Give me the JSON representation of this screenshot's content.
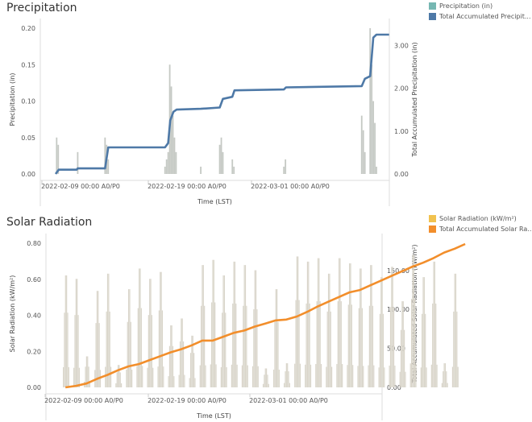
{
  "panels": [
    {
      "title": "Precipitation",
      "legend": [
        {
          "label": "Precipitation (in)",
          "color": "#76b7b2"
        },
        {
          "label": "Total Accumulated Precipit...",
          "color": "#4e79a7"
        }
      ]
    },
    {
      "title": "Solar Radiation",
      "legend": [
        {
          "label": "Solar Radiation (kW/m²)",
          "color": "#f1c24f"
        },
        {
          "label": "Total Accumulated Solar Ra...",
          "color": "#f28e2b"
        }
      ]
    }
  ],
  "chart_data": [
    {
      "type": "bar+line",
      "xlabel": "Time (LST)",
      "ylabel": "Precipitation (in)",
      "y2label": "Total Accumulated Precipitation (in)",
      "x_ticks": [
        "2022-02-09 00:00 A0/P0",
        "2022-02-19 00:00 A0/P0",
        "2022-03-01 00:00 A0/P0"
      ],
      "y_ticks": [
        "0.00",
        "0.05",
        "0.10",
        "0.15",
        "0.20"
      ],
      "y2_ticks": [
        "0.00",
        "1.00",
        "2.00",
        "3.00"
      ],
      "ylim": [
        0,
        0.2
      ],
      "y2lim": [
        0,
        3.4
      ],
      "grid": false,
      "bar_color": "#c5c9c4",
      "line_color": "#4e79a7",
      "bars": [
        {
          "day": 0.1,
          "v": 0.05
        },
        {
          "day": 0.25,
          "v": 0.04
        },
        {
          "day": 2.1,
          "v": 0.03
        },
        {
          "day": 4.7,
          "v": 0.05
        },
        {
          "day": 4.85,
          "v": 0.04
        },
        {
          "day": 5.0,
          "v": 0.02
        },
        {
          "day": 10.4,
          "v": 0.01
        },
        {
          "day": 10.55,
          "v": 0.02
        },
        {
          "day": 10.7,
          "v": 0.03
        },
        {
          "day": 10.85,
          "v": 0.15
        },
        {
          "day": 11.0,
          "v": 0.12
        },
        {
          "day": 11.15,
          "v": 0.08
        },
        {
          "day": 11.3,
          "v": 0.05
        },
        {
          "day": 11.45,
          "v": 0.03
        },
        {
          "day": 13.8,
          "v": 0.01
        },
        {
          "day": 15.6,
          "v": 0.04
        },
        {
          "day": 15.75,
          "v": 0.05
        },
        {
          "day": 15.9,
          "v": 0.03
        },
        {
          "day": 16.8,
          "v": 0.02
        },
        {
          "day": 16.95,
          "v": 0.01
        },
        {
          "day": 21.7,
          "v": 0.01
        },
        {
          "day": 21.85,
          "v": 0.02
        },
        {
          "day": 29.1,
          "v": 0.08
        },
        {
          "day": 29.25,
          "v": 0.06
        },
        {
          "day": 29.4,
          "v": 0.03
        },
        {
          "day": 29.9,
          "v": 0.2
        },
        {
          "day": 30.05,
          "v": 0.15
        },
        {
          "day": 30.2,
          "v": 0.1
        },
        {
          "day": 30.35,
          "v": 0.07
        },
        {
          "day": 30.5,
          "v": 0.01
        }
      ],
      "accumulated": [
        {
          "day": 0.0,
          "v": 0.0
        },
        {
          "day": 0.3,
          "v": 0.1
        },
        {
          "day": 2.0,
          "v": 0.1
        },
        {
          "day": 2.1,
          "v": 0.13
        },
        {
          "day": 4.7,
          "v": 0.13
        },
        {
          "day": 5.0,
          "v": 0.62
        },
        {
          "day": 10.4,
          "v": 0.62
        },
        {
          "day": 10.7,
          "v": 0.72
        },
        {
          "day": 10.9,
          "v": 1.25
        },
        {
          "day": 11.2,
          "v": 1.45
        },
        {
          "day": 11.5,
          "v": 1.5
        },
        {
          "day": 13.8,
          "v": 1.52
        },
        {
          "day": 15.6,
          "v": 1.55
        },
        {
          "day": 15.9,
          "v": 1.75
        },
        {
          "day": 16.8,
          "v": 1.8
        },
        {
          "day": 17.0,
          "v": 1.95
        },
        {
          "day": 21.7,
          "v": 1.97
        },
        {
          "day": 21.9,
          "v": 2.02
        },
        {
          "day": 29.1,
          "v": 2.05
        },
        {
          "day": 29.4,
          "v": 2.22
        },
        {
          "day": 29.9,
          "v": 2.28
        },
        {
          "day": 30.2,
          "v": 3.18
        },
        {
          "day": 30.5,
          "v": 3.25
        },
        {
          "day": 31.7,
          "v": 3.25
        }
      ]
    },
    {
      "type": "bar+line",
      "xlabel": "Time (LST)",
      "ylabel": "Solar Radiation (kW/m²)",
      "y2label": "Total Accumulated Solar Radiation (kW/m²)",
      "x_ticks": [
        "2022-02-09 00:00 A0/P0",
        "2022-02-19 00:00 A0/P0",
        "2022-03-01 00:00 A0/P0"
      ],
      "y_ticks": [
        "0.00",
        "0.20",
        "0.40",
        "0.60",
        "0.80"
      ],
      "y2_ticks": [
        "0.00",
        "50.00",
        "100.00",
        "150.00"
      ],
      "ylim": [
        0,
        0.8
      ],
      "y2lim": [
        0,
        185
      ],
      "grid": false,
      "bar_color": "#d9d5ca",
      "line_color": "#f28e2b",
      "daily_peaks": [
        0.65,
        0.63,
        0.18,
        0.56,
        0.66,
        0.13,
        0.57,
        0.69,
        0.63,
        0.67,
        0.36,
        0.4,
        0.3,
        0.71,
        0.74,
        0.65,
        0.73,
        0.71,
        0.68,
        0.11,
        0.57,
        0.14,
        0.76,
        0.73,
        0.75,
        0.66,
        0.75,
        0.72,
        0.69,
        0.71,
        0.64,
        0.7,
        0.5,
        0.77,
        0.64,
        0.73,
        0.14,
        0.66
      ],
      "accumulated": [
        0,
        2,
        5,
        11,
        16,
        22,
        27,
        30,
        35,
        40,
        45,
        49,
        54,
        60,
        60,
        65,
        70,
        73,
        78,
        82,
        86,
        87,
        91,
        97,
        104,
        110,
        116,
        122,
        125,
        131,
        137,
        143,
        149,
        155,
        160,
        166,
        173,
        178,
        184
      ]
    }
  ]
}
